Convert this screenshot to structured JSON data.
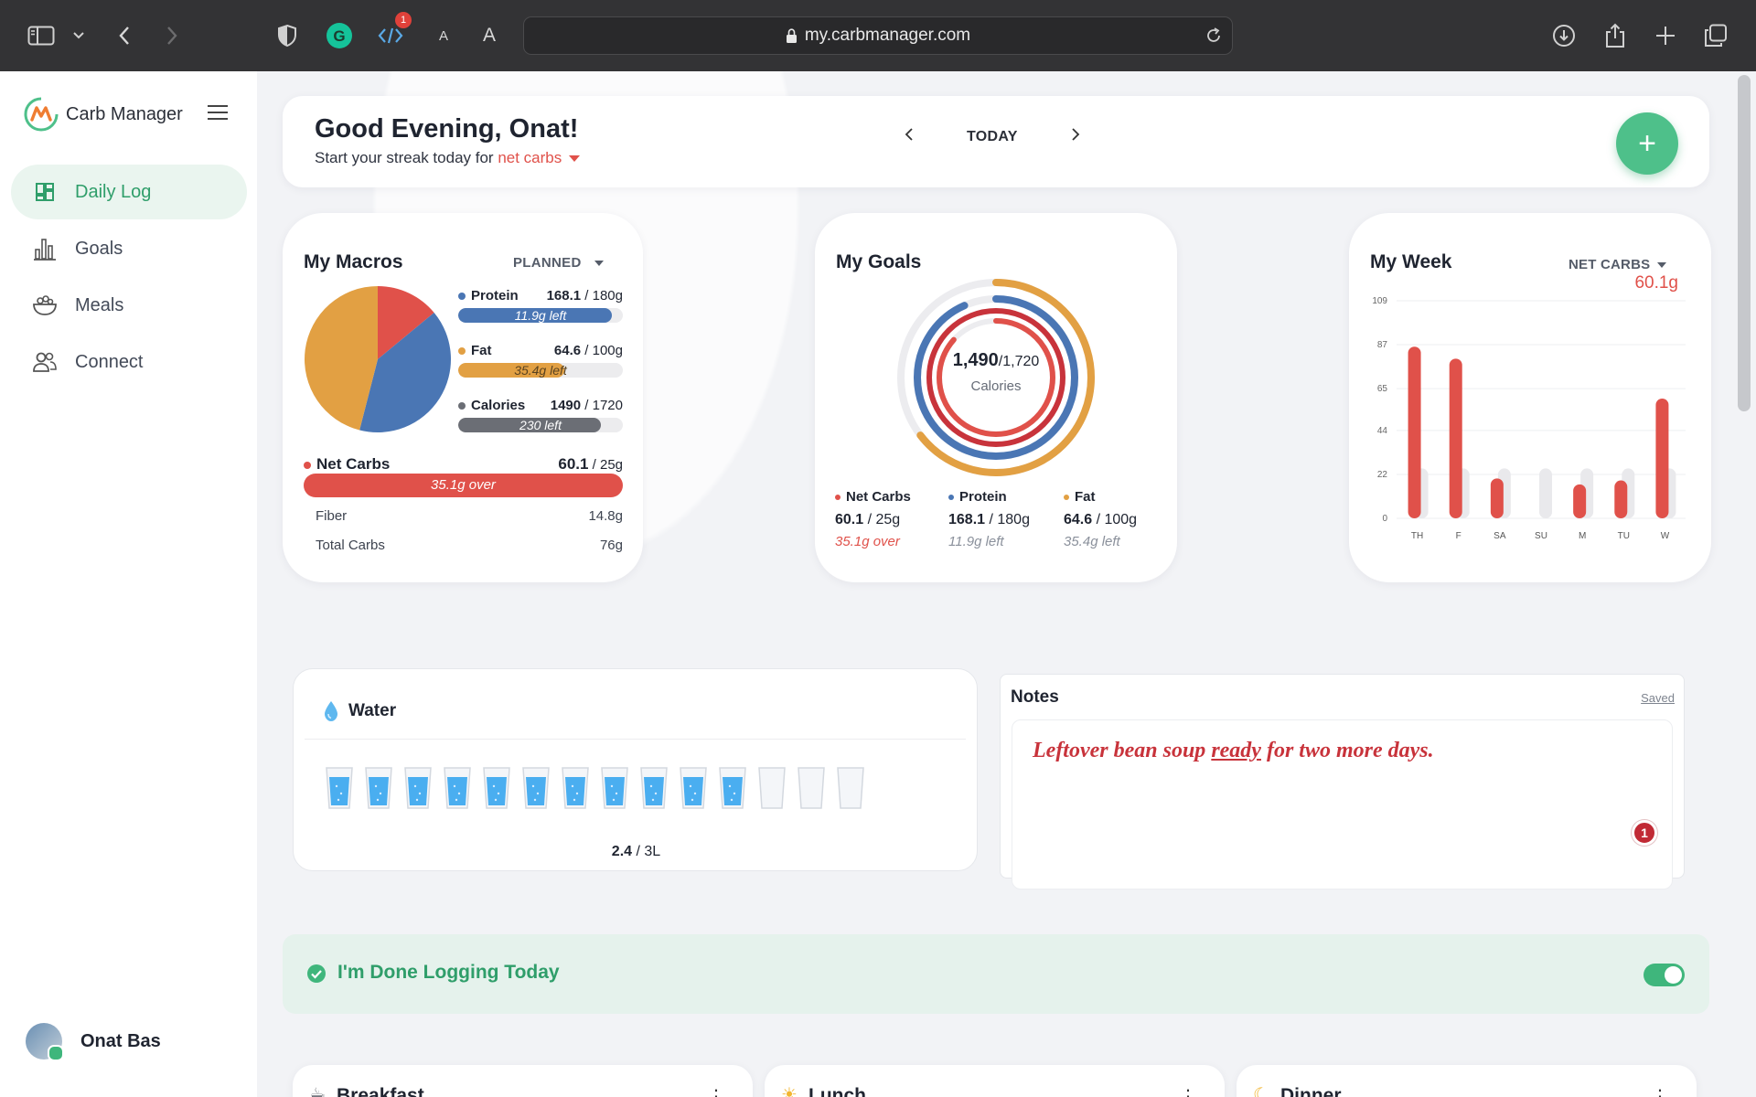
{
  "browser": {
    "url": "my.carbmanager.com",
    "extension_badge": "1",
    "text_small": "A",
    "text_large": "A"
  },
  "sidebar": {
    "app_name": "Carb Manager",
    "items": [
      {
        "label": "Daily Log",
        "icon": "daily-log-icon",
        "active": true
      },
      {
        "label": "Goals",
        "icon": "bar-chart-icon",
        "active": false
      },
      {
        "label": "Meals",
        "icon": "bowl-icon",
        "active": false
      },
      {
        "label": "Connect",
        "icon": "people-icon",
        "active": false
      }
    ],
    "user_name": "Onat Bas"
  },
  "header": {
    "greeting": "Good Evening, Onat!",
    "streak_prefix": "Start your streak today for ",
    "streak_metric": "net carbs",
    "date_label": "TODAY",
    "add_label": "+"
  },
  "macros": {
    "title": "My Macros",
    "mode": "PLANNED",
    "rows": [
      {
        "name": "Protein",
        "value": "168.1",
        "goal": " / 180g",
        "remaining": "11.9g left",
        "fraction": 0.934,
        "color": "#4a76b4"
      },
      {
        "name": "Fat",
        "value": "64.6",
        "goal": " / 100g",
        "remaining": "35.4g left",
        "fraction": 0.646,
        "color": "#e2a043"
      },
      {
        "name": "Calories",
        "value": "1490",
        "goal": " / 1720",
        "remaining": "230 left",
        "fraction": 0.866,
        "color": "#6b6e75"
      }
    ],
    "net_carbs": {
      "name": "Net Carbs",
      "value": "60.1",
      "goal": " / 25g",
      "over": "35.1g over",
      "color": "#e0514a"
    },
    "fiber": {
      "label": "Fiber",
      "value": "14.8g"
    },
    "total_carbs": {
      "label": "Total Carbs",
      "value": "76g"
    },
    "pie": [
      {
        "name": "Net Carbs",
        "value": 0.14,
        "color": "#e0514a"
      },
      {
        "name": "Protein",
        "value": 0.4,
        "color": "#4a76b4"
      },
      {
        "name": "Fat",
        "value": 0.46,
        "color": "#e2a043"
      }
    ]
  },
  "goals": {
    "title": "My Goals",
    "calories_value": "1,490",
    "calories_goal": "/1,720",
    "calories_label": "Calories",
    "rings": [
      {
        "name": "Fat",
        "fraction": 0.646,
        "color": "#e2a043"
      },
      {
        "name": "Protein",
        "fraction": 0.934,
        "color": "#4a76b4"
      },
      {
        "name": "Net Carbs",
        "fraction": 1.0,
        "color": "#c8333b"
      },
      {
        "name": "Calories",
        "fraction": 0.866,
        "color": "#e0514a"
      }
    ],
    "columns": [
      {
        "name": "Net Carbs",
        "value": "60.1",
        "goal": " / 25g",
        "status": "35.1g over",
        "color": "#e0514a",
        "over": true
      },
      {
        "name": "Protein",
        "value": "168.1",
        "goal": " / 180g",
        "status": "11.9g left",
        "color": "#4a76b4",
        "over": false
      },
      {
        "name": "Fat",
        "value": "64.6",
        "goal": " / 100g",
        "status": "35.4g left",
        "color": "#e2a043",
        "over": false
      }
    ]
  },
  "week": {
    "title": "My Week",
    "metric": "NET CARBS",
    "current_value": "60.1g",
    "chart_data": {
      "type": "bar",
      "categories": [
        "TH",
        "F",
        "SA",
        "SU",
        "M",
        "TU",
        "W"
      ],
      "values": [
        86,
        80,
        20,
        0,
        17,
        19,
        60
      ],
      "goal": 25,
      "yticks": [
        "109",
        "87",
        "65",
        "44",
        "22",
        "0"
      ],
      "ylim": [
        0,
        109
      ],
      "color": "#e0514a"
    }
  },
  "water": {
    "title": "Water",
    "amount": "2.4",
    "total": " / 3L",
    "glasses_filled": 11,
    "glasses_total": 14
  },
  "notes": {
    "title": "Notes",
    "status": "Saved",
    "text_before": "Leftover bean soup ",
    "text_underlined": "ready",
    "text_after": " for two more days.",
    "badge": "1"
  },
  "done_logging": {
    "label": "I'm Done Logging Today",
    "on": true
  },
  "meals": [
    {
      "label": "Breakfast",
      "icon": "coffee-icon"
    },
    {
      "label": "Lunch",
      "icon": "sun-icon"
    },
    {
      "label": "Dinner",
      "icon": "moon-icon"
    }
  ]
}
